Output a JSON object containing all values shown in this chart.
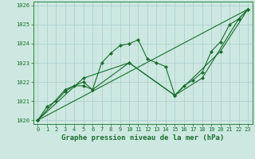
{
  "xlabel": "Graphe pression niveau de la mer (hPa)",
  "background_color": "#cce8e0",
  "grid_color": "#aacccc",
  "line_color": "#1a6e2e",
  "xlim": [
    -0.5,
    23.5
  ],
  "ylim": [
    1019.8,
    1026.2
  ],
  "yticks": [
    1020,
    1021,
    1022,
    1023,
    1024,
    1025,
    1026
  ],
  "xticks": [
    0,
    1,
    2,
    3,
    4,
    5,
    6,
    7,
    8,
    9,
    10,
    11,
    12,
    13,
    14,
    15,
    16,
    17,
    18,
    19,
    20,
    21,
    22,
    23
  ],
  "lines": [
    {
      "x": [
        0,
        1,
        2,
        3,
        4,
        5,
        6,
        7,
        8,
        9,
        10,
        11,
        12,
        13,
        14,
        15,
        16,
        17,
        18,
        19,
        20,
        21,
        22,
        23
      ],
      "y": [
        1020.0,
        1020.7,
        1021.0,
        1021.5,
        1021.8,
        1021.8,
        1021.6,
        1023.0,
        1023.5,
        1023.9,
        1024.0,
        1024.2,
        1023.2,
        1023.0,
        1022.8,
        1021.3,
        1021.8,
        1022.1,
        1022.5,
        1023.6,
        1024.1,
        1025.0,
        1025.3,
        1025.8
      ],
      "marker": true
    },
    {
      "x": [
        0,
        3,
        5,
        6,
        10,
        15,
        18,
        22,
        23
      ],
      "y": [
        1020.0,
        1021.6,
        1022.0,
        1021.6,
        1023.0,
        1021.3,
        1022.2,
        1025.3,
        1025.8
      ],
      "marker": true
    },
    {
      "x": [
        0,
        5,
        10,
        15,
        20,
        23
      ],
      "y": [
        1020.0,
        1022.2,
        1023.0,
        1021.3,
        1023.6,
        1025.8
      ],
      "marker": true
    },
    {
      "x": [
        0,
        23
      ],
      "y": [
        1020.0,
        1025.8
      ],
      "marker": false
    }
  ]
}
